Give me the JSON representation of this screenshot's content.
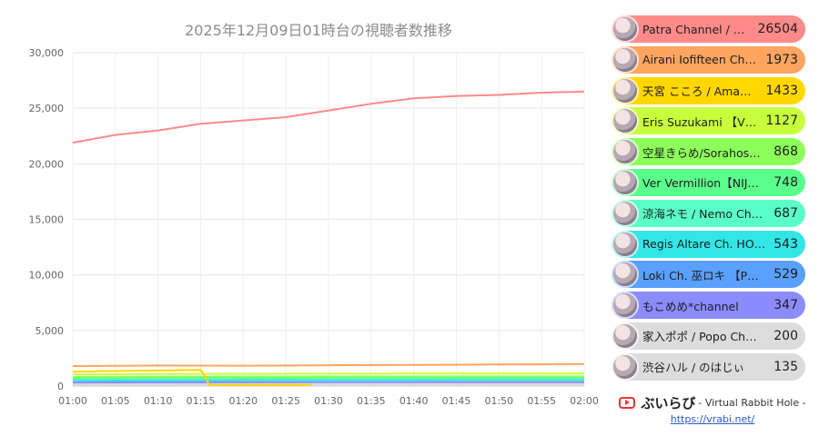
{
  "chart_data": {
    "type": "line",
    "title": "2025年12月09日01時台の視聴者数推移",
    "xlabel": "",
    "ylabel": "",
    "x_ticks": [
      "01:00",
      "01:05",
      "01:10",
      "01:15",
      "01:20",
      "01:25",
      "01:30",
      "01:35",
      "01:40",
      "01:45",
      "01:50",
      "01:55",
      "02:00"
    ],
    "xlim": [
      0,
      60
    ],
    "ylim": [
      0,
      30000
    ],
    "y_ticks": [
      0,
      5000,
      10000,
      15000,
      20000,
      25000,
      30000
    ],
    "y_tick_labels": [
      "0",
      "5,000",
      "10,000",
      "15,000",
      "20,000",
      "25,000",
      "30,000"
    ],
    "grid": true,
    "legend_position": "right",
    "series": [
      {
        "name": "Patra Channel / …",
        "value": "26504",
        "color": "#ff8a8a",
        "x": [
          0,
          5,
          10,
          15,
          20,
          25,
          30,
          35,
          40,
          45,
          50,
          55,
          60
        ],
        "values": [
          21900,
          22600,
          23000,
          23600,
          23900,
          24200,
          24800,
          25400,
          25900,
          26100,
          26200,
          26400,
          26504
        ]
      },
      {
        "name": "Airani Iofifteen Ch…",
        "value": "1973",
        "color": "#ffa560",
        "x": [
          0,
          10,
          20,
          30,
          40,
          50,
          60
        ],
        "values": [
          1800,
          1850,
          1830,
          1870,
          1900,
          1940,
          1973
        ]
      },
      {
        "name": "天宮 こころ / Ama…",
        "value": "1433",
        "color": "#ffd700",
        "x": [
          0,
          5,
          10,
          15,
          15.5,
          16,
          20,
          25,
          28
        ],
        "values": [
          1300,
          1350,
          1400,
          1450,
          900,
          100,
          100,
          100,
          100
        ]
      },
      {
        "name": "Eris Suzukami 【V…",
        "value": "1127",
        "color": "#c8ff3c",
        "x": [
          0,
          10,
          20,
          30,
          40,
          50,
          60
        ],
        "values": [
          1050,
          1080,
          1100,
          1110,
          1120,
          1125,
          1127
        ]
      },
      {
        "name": "空星きらめ/Sorahos…",
        "value": "868",
        "color": "#8cff5a",
        "x": [
          0,
          10,
          20,
          30,
          40,
          50,
          60
        ],
        "values": [
          820,
          840,
          850,
          860,
          865,
          866,
          868
        ]
      },
      {
        "name": "Ver Vermillion【NIJ…",
        "value": "748",
        "color": "#5aff8c",
        "x": [
          0,
          10,
          20,
          30,
          40,
          50,
          60
        ],
        "values": [
          700,
          720,
          730,
          740,
          745,
          747,
          748
        ]
      },
      {
        "name": "涼海ネモ / Nemo Ch…",
        "value": "687",
        "color": "#5affc8",
        "x": [
          0,
          10,
          20,
          30,
          40,
          50,
          60
        ],
        "values": [
          640,
          660,
          670,
          680,
          684,
          686,
          687
        ]
      },
      {
        "name": "Regis Altare Ch. HO…",
        "value": "543",
        "color": "#32e6e6",
        "x": [
          0,
          10,
          20,
          30,
          40,
          50,
          60
        ],
        "values": [
          500,
          520,
          530,
          535,
          540,
          542,
          543
        ]
      },
      {
        "name": "Loki Ch. 巫ロキ 【P…",
        "value": "529",
        "color": "#5aa0ff",
        "x": [
          0,
          10,
          20,
          30,
          40,
          50,
          60
        ],
        "values": [
          480,
          500,
          510,
          520,
          525,
          528,
          529
        ]
      },
      {
        "name": "もこめめ*channel",
        "value": "347",
        "color": "#8c8cff",
        "x": [
          0,
          10,
          20,
          30,
          40,
          50,
          60
        ],
        "values": [
          320,
          330,
          335,
          340,
          344,
          346,
          347
        ]
      },
      {
        "name": "家入ポポ / Popo Ch…",
        "value": "200",
        "color": "#dcdcdc",
        "x": [
          0,
          10,
          20,
          30,
          40,
          50,
          60
        ],
        "values": [
          180,
          190,
          195,
          198,
          199,
          200,
          200
        ]
      },
      {
        "name": "渋谷ハル / のはじぃ",
        "value": "135",
        "color": "#dcdcdc",
        "x": [
          0,
          10,
          20,
          30,
          40,
          50,
          60
        ],
        "values": [
          120,
          125,
          130,
          132,
          134,
          135,
          135
        ]
      }
    ]
  },
  "footer": {
    "brand": "ぶいらび",
    "subtitle": "- Virtual Rabbit Hole -",
    "url": "https://vrabi.net/",
    "icon": "youtube-play-icon",
    "accent_color": "#e33333"
  }
}
